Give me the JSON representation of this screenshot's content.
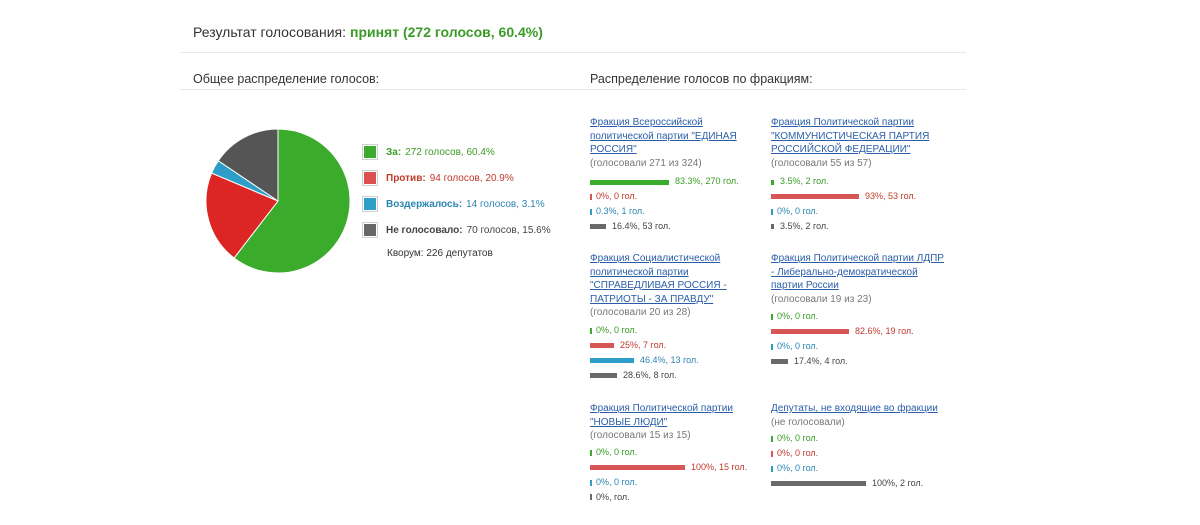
{
  "header": {
    "result_label": "Результат голосования:",
    "result_value": "принят (272 голосов, 60.4%)"
  },
  "sections": {
    "overall_title": "Общее распределение голосов:",
    "factions_title": "Распределение голосов по фракциям:"
  },
  "colors": {
    "for": "#3aab2a",
    "against": "#dc2626",
    "abstained": "#2c9ec8",
    "not_voted": "#555555"
  },
  "chart_data": {
    "type": "pie",
    "slices": [
      {
        "name": "За",
        "votes": 272,
        "percent": 60.4,
        "color": "#3aab2a"
      },
      {
        "name": "Против",
        "votes": 94,
        "percent": 20.9,
        "color": "#dc2626"
      },
      {
        "name": "Воздержалось",
        "votes": 14,
        "percent": 3.1,
        "color": "#2c9ec8"
      },
      {
        "name": "Не голосовало",
        "votes": 70,
        "percent": 15.6,
        "color": "#555555"
      }
    ]
  },
  "legend": [
    {
      "label": "За:",
      "value": "272 голосов, 60.4%"
    },
    {
      "label": "Против:",
      "value": "94 голосов, 20.9%"
    },
    {
      "label": "Воздержалось:",
      "value": "14 голосов, 3.1%"
    },
    {
      "label": "Не голосовало:",
      "value": "70 голосов, 15.6%"
    }
  ],
  "quorum": "Кворум: 226 депутатов",
  "factions": [
    {
      "name": "Фракция Всероссийской политической партии \"ЕДИНАЯ РОССИЯ\"",
      "voted": "(голосовали 271 из 324)",
      "rows": [
        {
          "kind": "for",
          "share": 0.833,
          "text": "83.3%, 270 гол."
        },
        {
          "kind": "against",
          "share": 0,
          "text": "0%, 0 гол."
        },
        {
          "kind": "abst",
          "share": 0.003,
          "text": "0.3%, 1 гол."
        },
        {
          "kind": "none",
          "share": 0.164,
          "text": "16.4%, 53 гол."
        }
      ]
    },
    {
      "name": "Фракция Политической партии \"КОММУНИСТИЧЕСКАЯ ПАРТИЯ РОССИЙСКОЙ ФЕДЕРАЦИИ\"",
      "voted": "(голосовали 55 из 57)",
      "rows": [
        {
          "kind": "for",
          "share": 0.035,
          "text": "3.5%, 2 гол."
        },
        {
          "kind": "against",
          "share": 0.93,
          "text": "93%, 53 гол."
        },
        {
          "kind": "abst",
          "share": 0,
          "text": "0%, 0 гол."
        },
        {
          "kind": "none",
          "share": 0.035,
          "text": "3.5%, 2 гол."
        }
      ]
    },
    {
      "name": "Фракция Социалистической политической партии \"СПРАВЕДЛИВАЯ РОССИЯ - ПАТРИОТЫ - ЗА ПРАВДУ\"",
      "voted": "(голосовали 20 из 28)",
      "rows": [
        {
          "kind": "for",
          "share": 0,
          "text": "0%, 0 гол."
        },
        {
          "kind": "against",
          "share": 0.25,
          "text": "25%, 7 гол."
        },
        {
          "kind": "abst",
          "share": 0.464,
          "text": "46.4%, 13 гол."
        },
        {
          "kind": "none",
          "share": 0.286,
          "text": "28.6%, 8 гол."
        }
      ]
    },
    {
      "name": "Фракция Политической партии ЛДПР - Либерально-демократической партии России",
      "voted": "(голосовали 19 из 23)",
      "rows": [
        {
          "kind": "for",
          "share": 0,
          "text": "0%, 0 гол."
        },
        {
          "kind": "against",
          "share": 0.826,
          "text": "82.6%, 19 гол."
        },
        {
          "kind": "abst",
          "share": 0,
          "text": "0%, 0 гол."
        },
        {
          "kind": "none",
          "share": 0.174,
          "text": "17.4%, 4 гол."
        }
      ]
    },
    {
      "name": "Фракция Политической партии \"НОВЫЕ ЛЮДИ\"",
      "voted": "(голосовали 15 из 15)",
      "rows": [
        {
          "kind": "for",
          "share": 0,
          "text": "0%, 0 гол."
        },
        {
          "kind": "against",
          "share": 1.0,
          "text": "100%, 15 гол."
        },
        {
          "kind": "abst",
          "share": 0,
          "text": "0%, 0 гол."
        },
        {
          "kind": "none",
          "share": 0,
          "text": "0%, гол."
        }
      ]
    },
    {
      "name": "Депутаты, не входящие во фракции",
      "voted": "(не голосовали)",
      "rows": [
        {
          "kind": "for",
          "share": 0,
          "text": "0%, 0 гол."
        },
        {
          "kind": "against",
          "share": 0,
          "text": "0%, 0 гол."
        },
        {
          "kind": "abst",
          "share": 0,
          "text": "0%, 0 гол."
        },
        {
          "kind": "none",
          "share": 1.0,
          "text": "100%, 2 гол."
        }
      ]
    }
  ]
}
